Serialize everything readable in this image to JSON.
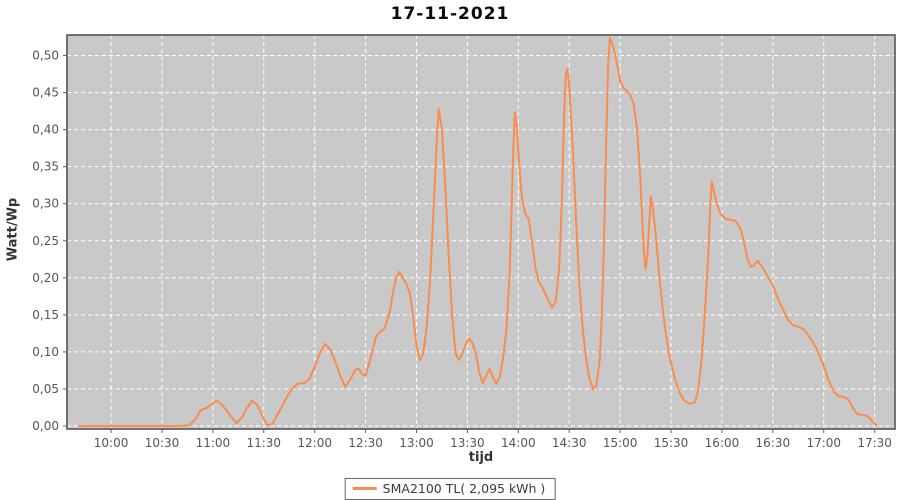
{
  "chart_data": {
    "type": "line",
    "title": "17-11-2021",
    "xlabel": "tijd",
    "ylabel": "Watt/Wp",
    "legend_label": "SMA2100 TL( 2,095 kWh )",
    "legend_position": "bottom-center",
    "grid": true,
    "colors": {
      "line": "#f98c4e",
      "plot_background": "#c9c9c9",
      "gridline": "#ffffff",
      "plot_border": "#4a4a4a",
      "tick": "#666666",
      "tick_text": "#555555"
    },
    "x_range_hours": [
      9.567,
      17.7
    ],
    "y_range": [
      -0.004,
      0.5277
    ],
    "x_ticks": [
      {
        "t": 10.0,
        "label": "10:00"
      },
      {
        "t": 10.5,
        "label": "10:30"
      },
      {
        "t": 11.0,
        "label": "11:00"
      },
      {
        "t": 11.5,
        "label": "11:30"
      },
      {
        "t": 12.0,
        "label": "12:00"
      },
      {
        "t": 12.5,
        "label": "12:30"
      },
      {
        "t": 13.0,
        "label": "13:00"
      },
      {
        "t": 13.5,
        "label": "13:30"
      },
      {
        "t": 14.0,
        "label": "14:00"
      },
      {
        "t": 14.5,
        "label": "14:30"
      },
      {
        "t": 15.0,
        "label": "15:00"
      },
      {
        "t": 15.5,
        "label": "15:30"
      },
      {
        "t": 16.0,
        "label": "16:00"
      },
      {
        "t": 16.5,
        "label": "16:30"
      },
      {
        "t": 17.0,
        "label": "17:00"
      },
      {
        "t": 17.5,
        "label": "17:30"
      }
    ],
    "y_ticks": [
      {
        "v": 0.0,
        "label": "0,00"
      },
      {
        "v": 0.05,
        "label": "0,05"
      },
      {
        "v": 0.1,
        "label": "0,10"
      },
      {
        "v": 0.15,
        "label": "0,15"
      },
      {
        "v": 0.2,
        "label": "0,20"
      },
      {
        "v": 0.25,
        "label": "0,25"
      },
      {
        "v": 0.3,
        "label": "0,30"
      },
      {
        "v": 0.35,
        "label": "0,35"
      },
      {
        "v": 0.4,
        "label": "0,40"
      },
      {
        "v": 0.45,
        "label": "0,45"
      },
      {
        "v": 0.5,
        "label": "0,50"
      }
    ],
    "series": [
      {
        "name": "SMA2100 TL( 2,095 kWh )",
        "color": "#f98c4e",
        "points": [
          [
            "09:41",
            0.0
          ],
          [
            "09:50",
            0.0
          ],
          [
            "10:00",
            0.0
          ],
          [
            "10:10",
            0.0
          ],
          [
            "10:20",
            0.0
          ],
          [
            "10:30",
            0.0
          ],
          [
            "10:40",
            0.0
          ],
          [
            "10:46",
            0.001
          ],
          [
            "10:50",
            0.01
          ],
          [
            "10:53",
            0.022
          ],
          [
            "10:56",
            0.024
          ],
          [
            "10:59",
            0.029
          ],
          [
            "11:02",
            0.034
          ],
          [
            "11:05",
            0.03
          ],
          [
            "11:08",
            0.021
          ],
          [
            "11:11",
            0.012
          ],
          [
            "11:14",
            0.004
          ],
          [
            "11:17",
            0.011
          ],
          [
            "11:20",
            0.024
          ],
          [
            "11:23",
            0.034
          ],
          [
            "11:26",
            0.029
          ],
          [
            "11:29",
            0.014
          ],
          [
            "11:32",
            0.001
          ],
          [
            "11:35",
            0.003
          ],
          [
            "11:38",
            0.015
          ],
          [
            "11:41",
            0.028
          ],
          [
            "11:44",
            0.041
          ],
          [
            "11:47",
            0.051
          ],
          [
            "11:50",
            0.057
          ],
          [
            "11:54",
            0.058
          ],
          [
            "11:57",
            0.064
          ],
          [
            "12:00",
            0.08
          ],
          [
            "12:03",
            0.098
          ],
          [
            "12:06",
            0.111
          ],
          [
            "12:09",
            0.104
          ],
          [
            "12:12",
            0.088
          ],
          [
            "12:15",
            0.068
          ],
          [
            "12:18",
            0.053
          ],
          [
            "12:21",
            0.063
          ],
          [
            "12:24",
            0.076
          ],
          [
            "12:26",
            0.077
          ],
          [
            "12:28",
            0.07
          ],
          [
            "12:30",
            0.068
          ],
          [
            "12:33",
            0.092
          ],
          [
            "12:36",
            0.12
          ],
          [
            "12:38",
            0.126
          ],
          [
            "12:41",
            0.131
          ],
          [
            "12:44",
            0.152
          ],
          [
            "12:46",
            0.178
          ],
          [
            "12:48",
            0.2
          ],
          [
            "12:50",
            0.208
          ],
          [
            "12:52",
            0.2
          ],
          [
            "12:54",
            0.192
          ],
          [
            "12:56",
            0.18
          ],
          [
            "12:58",
            0.148
          ],
          [
            "13:00",
            0.108
          ],
          [
            "13:02",
            0.089
          ],
          [
            "13:04",
            0.098
          ],
          [
            "13:06",
            0.135
          ],
          [
            "13:08",
            0.196
          ],
          [
            "13:10",
            0.29
          ],
          [
            "13:12",
            0.39
          ],
          [
            "13:13",
            0.428
          ],
          [
            "13:15",
            0.4
          ],
          [
            "13:17",
            0.32
          ],
          [
            "13:19",
            0.23
          ],
          [
            "13:21",
            0.15
          ],
          [
            "13:23",
            0.098
          ],
          [
            "13:25",
            0.089
          ],
          [
            "13:27",
            0.098
          ],
          [
            "13:29",
            0.11
          ],
          [
            "13:31",
            0.118
          ],
          [
            "13:33",
            0.112
          ],
          [
            "13:35",
            0.098
          ],
          [
            "13:37",
            0.072
          ],
          [
            "13:39",
            0.058
          ],
          [
            "13:41",
            0.068
          ],
          [
            "13:43",
            0.077
          ],
          [
            "13:45",
            0.066
          ],
          [
            "13:47",
            0.057
          ],
          [
            "13:49",
            0.066
          ],
          [
            "13:51",
            0.09
          ],
          [
            "13:53",
            0.13
          ],
          [
            "13:55",
            0.21
          ],
          [
            "13:56",
            0.29
          ],
          [
            "13:57",
            0.37
          ],
          [
            "13:58",
            0.423
          ],
          [
            "13:59",
            0.408
          ],
          [
            "14:00",
            0.37
          ],
          [
            "14:02",
            0.31
          ],
          [
            "14:04",
            0.287
          ],
          [
            "14:06",
            0.28
          ],
          [
            "14:08",
            0.25
          ],
          [
            "14:10",
            0.215
          ],
          [
            "14:12",
            0.195
          ],
          [
            "14:14",
            0.188
          ],
          [
            "14:16",
            0.178
          ],
          [
            "14:18",
            0.168
          ],
          [
            "14:20",
            0.16
          ],
          [
            "14:22",
            0.168
          ],
          [
            "14:24",
            0.21
          ],
          [
            "14:25",
            0.26
          ],
          [
            "14:26",
            0.33
          ],
          [
            "14:27",
            0.42
          ],
          [
            "14:28",
            0.475
          ],
          [
            "14:29",
            0.482
          ],
          [
            "14:30",
            0.46
          ],
          [
            "14:32",
            0.38
          ],
          [
            "14:34",
            0.28
          ],
          [
            "14:36",
            0.19
          ],
          [
            "14:38",
            0.13
          ],
          [
            "14:40",
            0.09
          ],
          [
            "14:42",
            0.063
          ],
          [
            "14:44",
            0.05
          ],
          [
            "14:46",
            0.055
          ],
          [
            "14:48",
            0.09
          ],
          [
            "14:49",
            0.14
          ],
          [
            "14:50",
            0.21
          ],
          [
            "14:51",
            0.3
          ],
          [
            "14:52",
            0.4
          ],
          [
            "14:53",
            0.49
          ],
          [
            "14:54",
            0.524
          ],
          [
            "14:56",
            0.512
          ],
          [
            "14:58",
            0.49
          ],
          [
            "15:00",
            0.466
          ],
          [
            "15:02",
            0.456
          ],
          [
            "15:04",
            0.452
          ],
          [
            "15:06",
            0.447
          ],
          [
            "15:08",
            0.435
          ],
          [
            "15:10",
            0.4
          ],
          [
            "15:12",
            0.33
          ],
          [
            "15:13",
            0.28
          ],
          [
            "15:14",
            0.235
          ],
          [
            "15:15",
            0.212
          ],
          [
            "15:16",
            0.228
          ],
          [
            "15:17",
            0.268
          ],
          [
            "15:18",
            0.31
          ],
          [
            "15:19",
            0.298
          ],
          [
            "15:21",
            0.258
          ],
          [
            "15:23",
            0.205
          ],
          [
            "15:25",
            0.16
          ],
          [
            "15:27",
            0.124
          ],
          [
            "15:29",
            0.095
          ],
          [
            "15:32",
            0.066
          ],
          [
            "15:35",
            0.045
          ],
          [
            "15:38",
            0.034
          ],
          [
            "15:41",
            0.03
          ],
          [
            "15:44",
            0.032
          ],
          [
            "15:46",
            0.048
          ],
          [
            "15:48",
            0.09
          ],
          [
            "15:50",
            0.155
          ],
          [
            "15:52",
            0.235
          ],
          [
            "15:53",
            0.29
          ],
          [
            "15:54",
            0.33
          ],
          [
            "15:55",
            0.32
          ],
          [
            "15:57",
            0.3
          ],
          [
            "15:59",
            0.287
          ],
          [
            "16:02",
            0.28
          ],
          [
            "16:05",
            0.278
          ],
          [
            "16:08",
            0.277
          ],
          [
            "16:11",
            0.266
          ],
          [
            "16:13",
            0.248
          ],
          [
            "16:15",
            0.226
          ],
          [
            "16:17",
            0.215
          ],
          [
            "16:19",
            0.217
          ],
          [
            "16:21",
            0.223
          ],
          [
            "16:24",
            0.214
          ],
          [
            "16:27",
            0.202
          ],
          [
            "16:30",
            0.19
          ],
          [
            "16:33",
            0.172
          ],
          [
            "16:36",
            0.157
          ],
          [
            "16:39",
            0.143
          ],
          [
            "16:42",
            0.136
          ],
          [
            "16:45",
            0.134
          ],
          [
            "16:48",
            0.131
          ],
          [
            "16:51",
            0.122
          ],
          [
            "16:54",
            0.112
          ],
          [
            "16:57",
            0.098
          ],
          [
            "17:00",
            0.081
          ],
          [
            "17:03",
            0.061
          ],
          [
            "17:06",
            0.046
          ],
          [
            "17:09",
            0.04
          ],
          [
            "17:12",
            0.039
          ],
          [
            "17:14",
            0.037
          ],
          [
            "17:16",
            0.03
          ],
          [
            "17:18",
            0.021
          ],
          [
            "17:20",
            0.016
          ],
          [
            "17:23",
            0.015
          ],
          [
            "17:26",
            0.013
          ],
          [
            "17:28",
            0.008
          ],
          [
            "17:31",
            0.001
          ]
        ]
      }
    ]
  }
}
